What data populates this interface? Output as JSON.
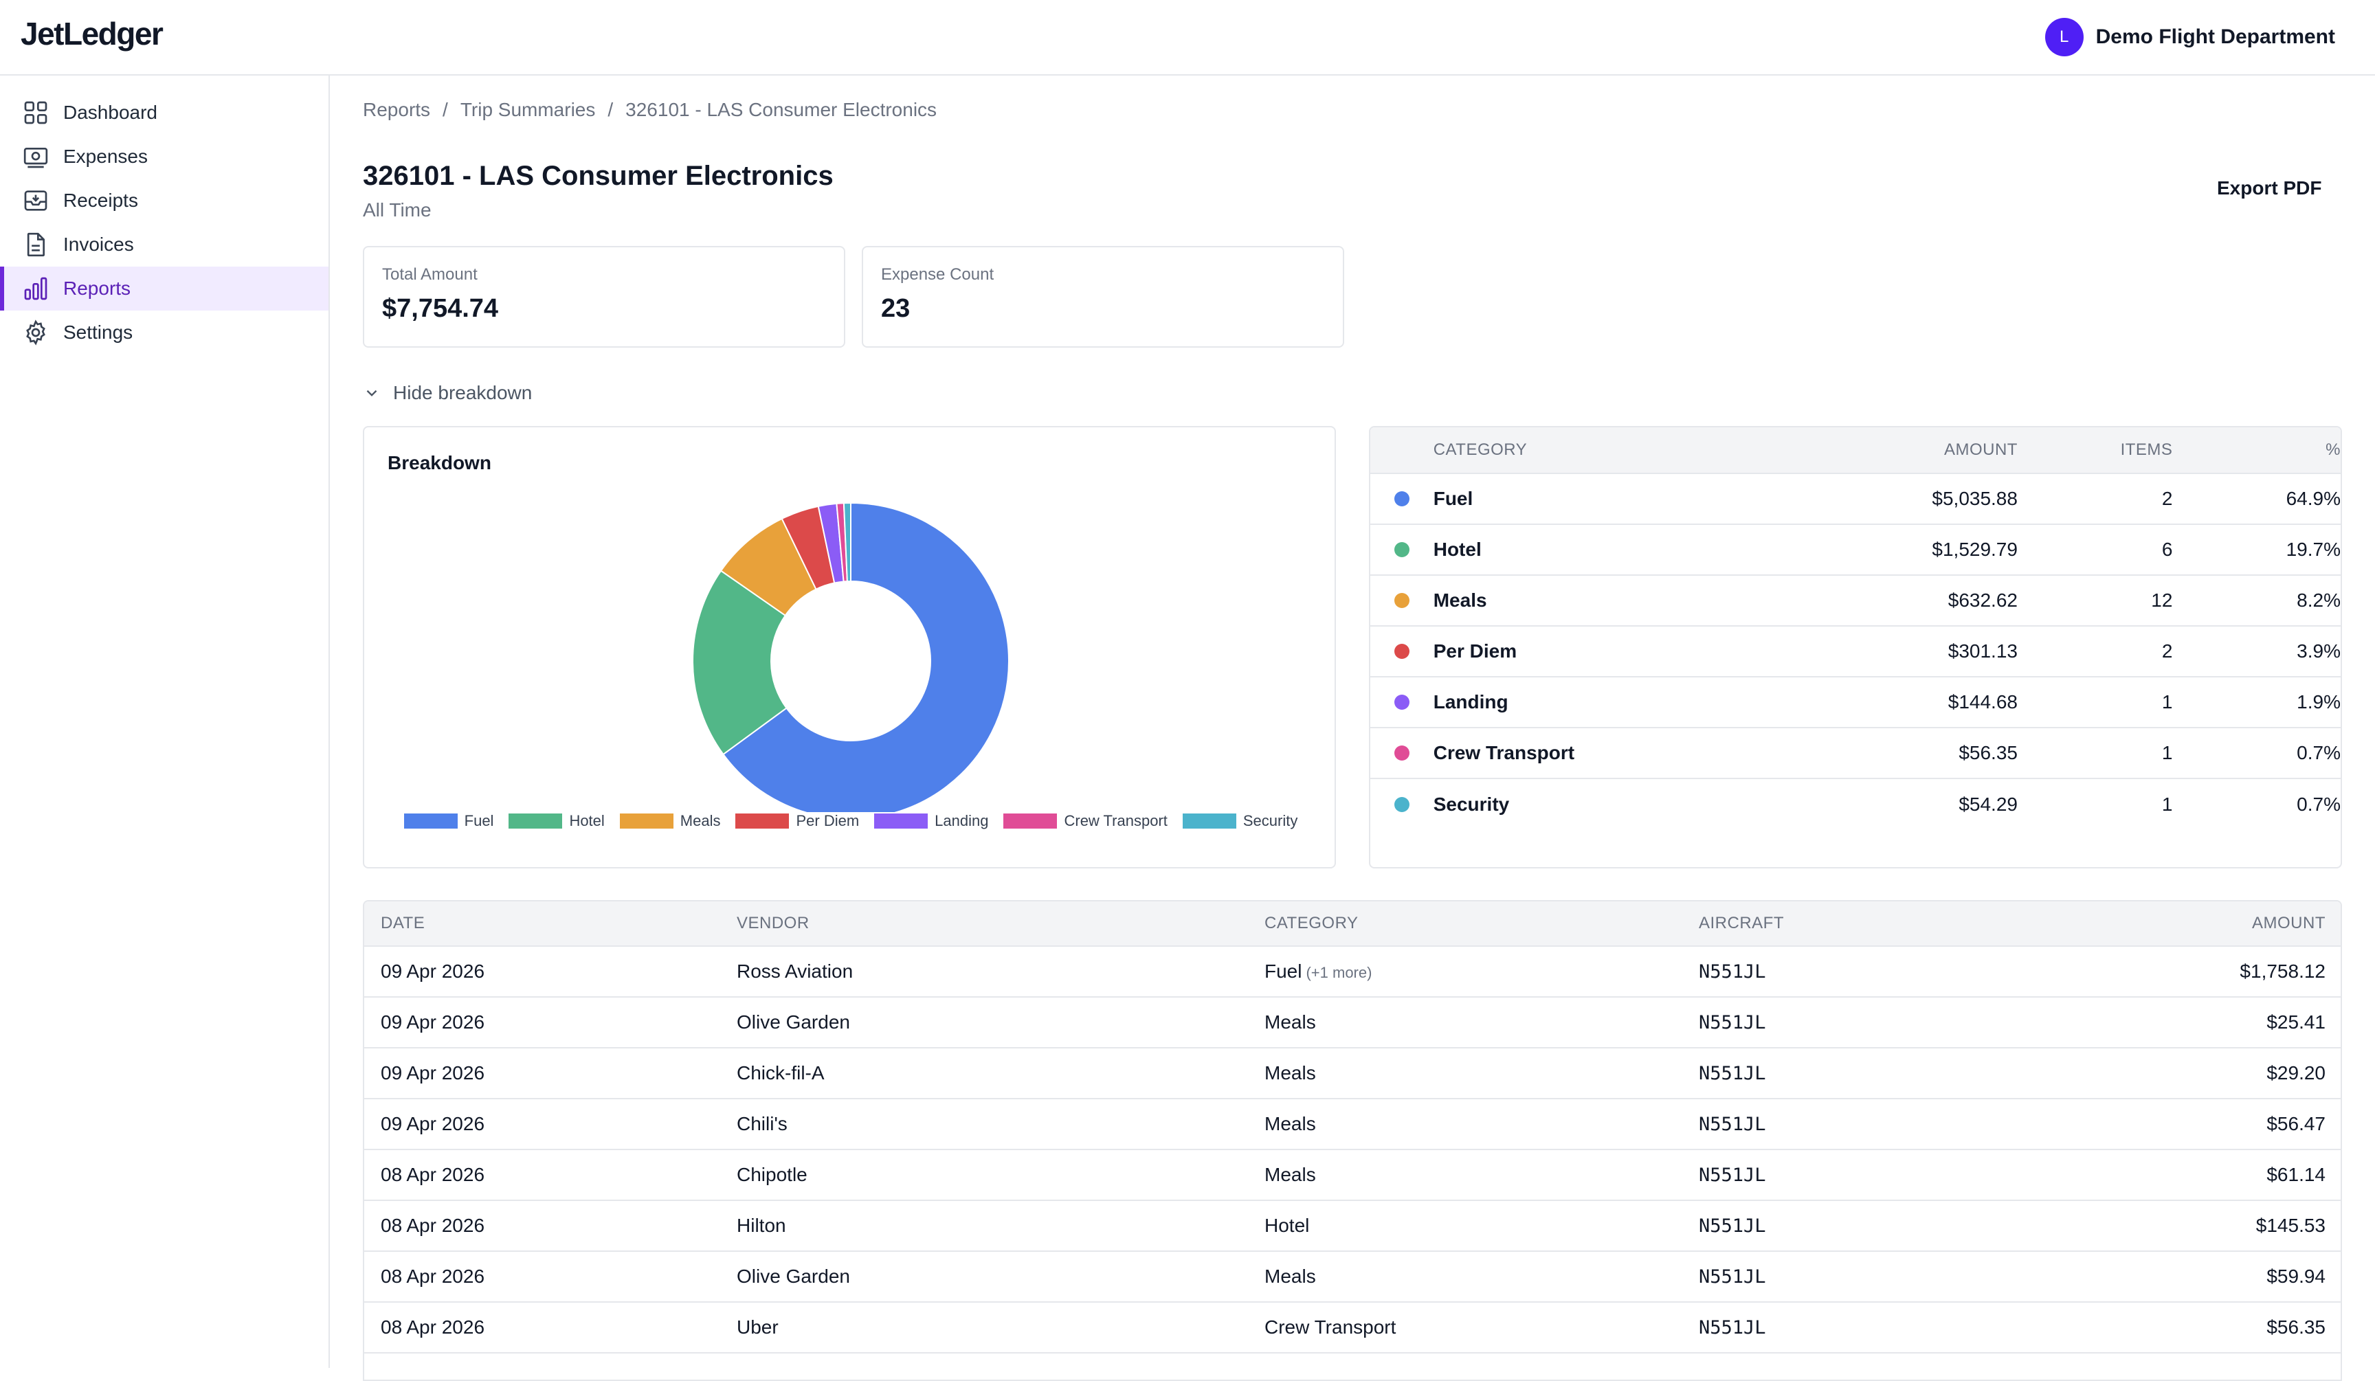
{
  "app": {
    "logo": "JetLedger"
  },
  "org": {
    "avatar_initial": "L",
    "name": "Demo Flight Department"
  },
  "sidebar": {
    "items": [
      {
        "label": "Dashboard",
        "icon": "dashboard-icon"
      },
      {
        "label": "Expenses",
        "icon": "expenses-icon"
      },
      {
        "label": "Receipts",
        "icon": "receipts-icon"
      },
      {
        "label": "Invoices",
        "icon": "invoices-icon"
      },
      {
        "label": "Reports",
        "icon": "reports-icon",
        "active": true
      },
      {
        "label": "Settings",
        "icon": "settings-icon"
      }
    ]
  },
  "breadcrumb": {
    "items": [
      "Reports",
      "Trip Summaries",
      "326101 - LAS Consumer Electronics"
    ],
    "separator": "/"
  },
  "page": {
    "title": "326101 - LAS Consumer Electronics",
    "subtitle": "All Time",
    "export_label": "Export PDF"
  },
  "stats": {
    "total": {
      "label": "Total Amount",
      "value": "$7,754.74"
    },
    "count": {
      "label": "Expense Count",
      "value": "23"
    }
  },
  "breakdown_toggle": "Hide breakdown",
  "chart_card": {
    "title": "Breakdown"
  },
  "chart_data": {
    "type": "pie",
    "title": "Breakdown",
    "categories": [
      "Fuel",
      "Hotel",
      "Meals",
      "Per Diem",
      "Landing",
      "Crew Transport",
      "Security"
    ],
    "values": [
      5035.88,
      1529.79,
      632.62,
      301.13,
      144.68,
      56.35,
      54.29
    ],
    "colors": [
      "#4f80ea",
      "#52b788",
      "#e8a13a",
      "#dc4a4a",
      "#8b5cf6",
      "#e04c96",
      "#4bb3cc"
    ],
    "legend_position": "bottom"
  },
  "category_table": {
    "headers": {
      "category": "CATEGORY",
      "amount": "AMOUNT",
      "items": "ITEMS",
      "pct": "%"
    },
    "rows": [
      {
        "name": "Fuel",
        "amount": "$5,035.88",
        "items": "2",
        "pct": "64.9%",
        "color": "#4f80ea"
      },
      {
        "name": "Hotel",
        "amount": "$1,529.79",
        "items": "6",
        "pct": "19.7%",
        "color": "#52b788"
      },
      {
        "name": "Meals",
        "amount": "$632.62",
        "items": "12",
        "pct": "8.2%",
        "color": "#e8a13a"
      },
      {
        "name": "Per Diem",
        "amount": "$301.13",
        "items": "2",
        "pct": "3.9%",
        "color": "#dc4a4a"
      },
      {
        "name": "Landing",
        "amount": "$144.68",
        "items": "1",
        "pct": "1.9%",
        "color": "#8b5cf6"
      },
      {
        "name": "Crew Transport",
        "amount": "$56.35",
        "items": "1",
        "pct": "0.7%",
        "color": "#e04c96"
      },
      {
        "name": "Security",
        "amount": "$54.29",
        "items": "1",
        "pct": "0.7%",
        "color": "#4bb3cc"
      }
    ]
  },
  "expense_table": {
    "headers": {
      "date": "DATE",
      "vendor": "VENDOR",
      "category": "CATEGORY",
      "aircraft": "AIRCRAFT",
      "amount": "AMOUNT"
    },
    "rows": [
      {
        "date": "09 Apr 2026",
        "vendor": "Ross Aviation",
        "category": "Fuel",
        "more": "(+1 more)",
        "aircraft": "N551JL",
        "amount": "$1,758.12"
      },
      {
        "date": "09 Apr 2026",
        "vendor": "Olive Garden",
        "category": "Meals",
        "more": "",
        "aircraft": "N551JL",
        "amount": "$25.41"
      },
      {
        "date": "09 Apr 2026",
        "vendor": "Chick-fil-A",
        "category": "Meals",
        "more": "",
        "aircraft": "N551JL",
        "amount": "$29.20"
      },
      {
        "date": "09 Apr 2026",
        "vendor": "Chili's",
        "category": "Meals",
        "more": "",
        "aircraft": "N551JL",
        "amount": "$56.47"
      },
      {
        "date": "08 Apr 2026",
        "vendor": "Chipotle",
        "category": "Meals",
        "more": "",
        "aircraft": "N551JL",
        "amount": "$61.14"
      },
      {
        "date": "08 Apr 2026",
        "vendor": "Hilton",
        "category": "Hotel",
        "more": "",
        "aircraft": "N551JL",
        "amount": "$145.53"
      },
      {
        "date": "08 Apr 2026",
        "vendor": "Olive Garden",
        "category": "Meals",
        "more": "",
        "aircraft": "N551JL",
        "amount": "$59.94"
      },
      {
        "date": "08 Apr 2026",
        "vendor": "Uber",
        "category": "Crew Transport",
        "more": "",
        "aircraft": "N551JL",
        "amount": "$56.35"
      }
    ]
  }
}
